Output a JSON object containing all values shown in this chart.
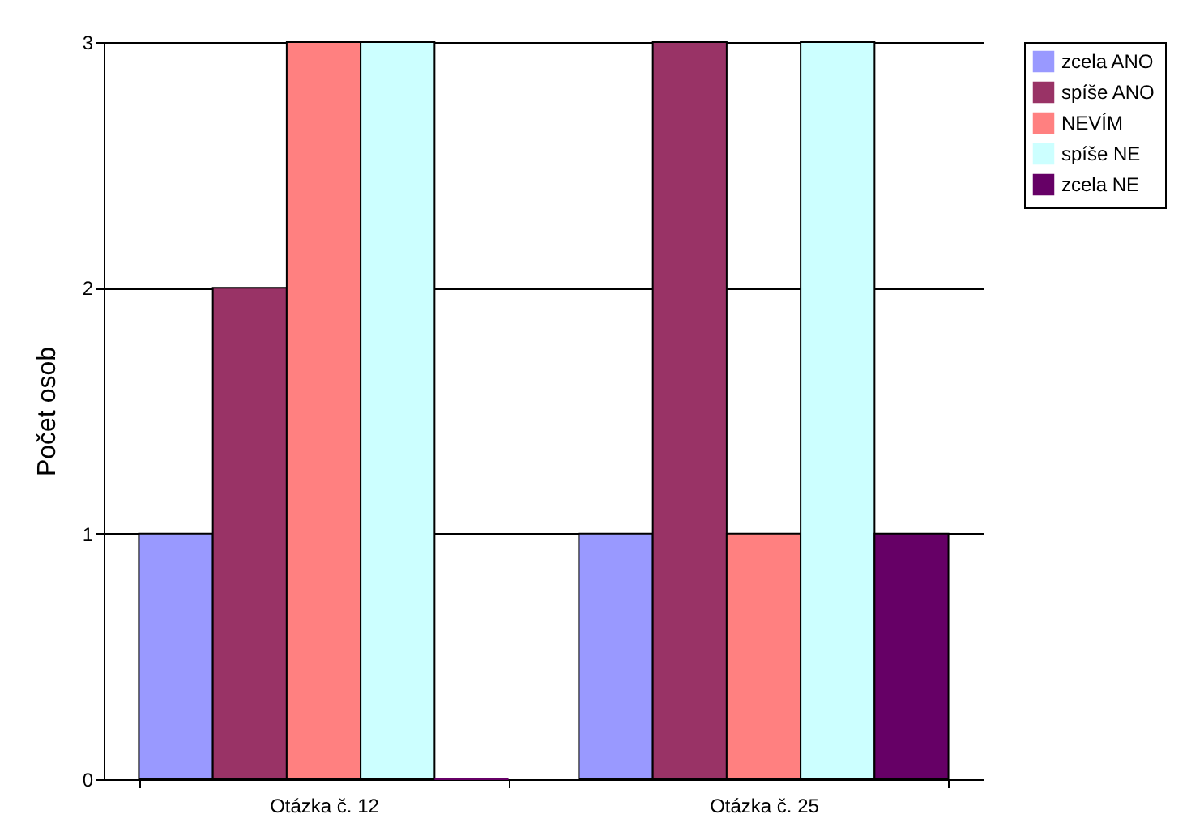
{
  "chart_data": {
    "type": "bar",
    "ylabel": "Počet osob",
    "categories": [
      "Otázka č. 12",
      "Otázka č. 25"
    ],
    "series": [
      {
        "name": "zcela ANO",
        "color": "#9999ff",
        "values": [
          1,
          1
        ]
      },
      {
        "name": "spíše ANO",
        "color": "#993366",
        "values": [
          2,
          3
        ]
      },
      {
        "name": "NEVÍM",
        "color": "#ff8080",
        "values": [
          3,
          1
        ]
      },
      {
        "name": "spíše NE",
        "color": "#ccffff",
        "values": [
          3,
          3
        ]
      },
      {
        "name": "zcela NE",
        "color": "#660066",
        "values": [
          0,
          1
        ]
      }
    ],
    "ylim": [
      0,
      3
    ],
    "yticks": [
      0,
      1,
      2,
      3
    ],
    "grid": "y",
    "legend": "right"
  }
}
